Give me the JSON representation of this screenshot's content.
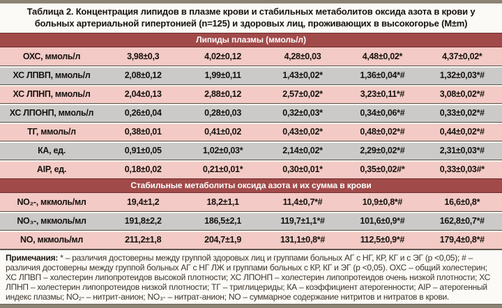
{
  "title": "Таблица 2. Концентрация липидов в плазме крови и стабильных метаболитов оксида азота в крови у больных артериальной гипертонией (n=125) и здоровых лиц, проживающих в высокогорье (M±m)",
  "table": {
    "sections": [
      {
        "header": "Липиды плазмы (ммоль/л)",
        "rows": [
          {
            "label": "ОХС, ммоль/л",
            "values": [
              "3,98±0,3",
              "4,02±0,12",
              "4,28±0,03",
              "4,48±0,02*",
              "4,37±0,02*"
            ]
          },
          {
            "label": "ХС ЛПВП, ммоль/л",
            "values": [
              "2,08±0,12",
              "1,99±0,11",
              "1,43±0,02*",
              "1,36±0,04*#",
              "1,32±0,03*#"
            ]
          },
          {
            "label": "ХС ЛПНП, ммоль/л",
            "values": [
              "2,04±0,13",
              "2,88±0,12",
              "2,57±0,02*",
              "3,23±0,11*#",
              "3,08±0,02*#"
            ]
          },
          {
            "label": "ХС ЛПОНП, ммоль/л",
            "values": [
              "0,26±0,04",
              "0,28±0,03",
              "0,32±0,03*",
              "0,34±0,06*#",
              "0,33±0,02*#"
            ]
          },
          {
            "label": "ТГ, ммоль/л",
            "values": [
              "0,38±0,01",
              "0,41±0,02",
              "0,43±0,02*",
              "0,48±0,02*#",
              "0,44±0,02*#"
            ]
          },
          {
            "label": "КА, ед.",
            "values": [
              "0,91±0,05",
              "1,02±0,03*",
              "2,14±0,02*",
              "2,29±0,02*#",
              "2,31±0,03*#"
            ]
          },
          {
            "label": "AIP, ед.",
            "values": [
              "0,18±0,02",
              "0,21±0,01*",
              "0,30±0,01*",
              "0,35±0,02#*",
              "0,33±0,03#*"
            ]
          }
        ]
      },
      {
        "header": "Стабильные метаболиты оксида азота и их сумма в крови",
        "rows": [
          {
            "label": "NO₂-, мкмоль/мл",
            "values": [
              "19,4±1,2",
              "18,2±1,1",
              "11,4±0,7*#",
              "10,9±0,8*#",
              "16,6±0,8*"
            ]
          },
          {
            "label": "NO₃-, мкмоль/мл",
            "values": [
              "191,8±2,2",
              "186,5±2,1",
              "119,7±1,1*#",
              "101,6±0,9*#",
              "162,8±0,7*#"
            ]
          },
          {
            "label": "NO, мкмоль/мл",
            "values": [
              "211,2±1,8",
              "204,7±1,9",
              "131,1±0,8*#",
              "112,5±0,9*#",
              "179,4±0,8*#"
            ]
          }
        ]
      }
    ]
  },
  "notes": {
    "label": "Примечания:",
    "text": "* – различия достоверны между группой здоровых лиц и группами больных АГ с НГ, КР, КГ и с ЭГ (р <0,05); # – различия достоверны между группой больных АГ с НГ ЛЖ и группами больных с КР, КГ и ЭГ (р <0,05). ОХС – общий холестерин; ХС ЛПВП – холестерин липопротеидов высокой плотности; ХС ЛПОНП – холестерин липопротеидов очень низкой плотности; ХС ЛПНП – холестерин липопротеидов низкой плотности; ТГ – триглицериды; КА – коэффициент атерогенности; AIP – атерогенный индекс плазмы; NO₂- – нитрит-анион; NO₃- – нитрат-анион; NO – суммарное содержание нитритов и нитратов в крови."
  },
  "colors": {
    "section_band": "#a14a4a",
    "row_pink": "#f3cac5",
    "row_gray": "#cbcac9",
    "edge_bar": "#8b8374",
    "page_background": "#fcfaf6"
  }
}
